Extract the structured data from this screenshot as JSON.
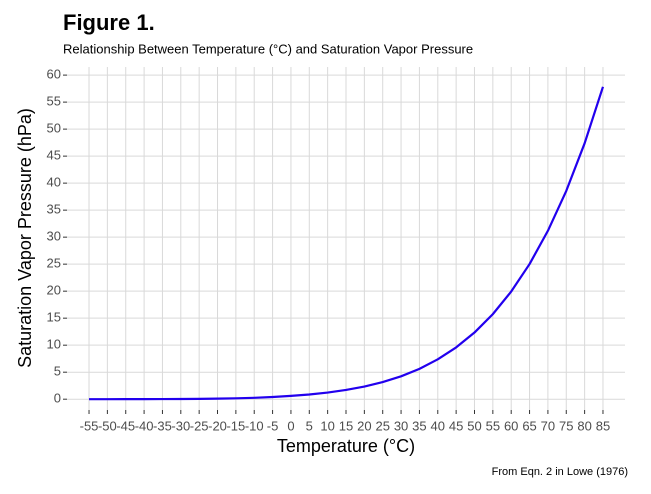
{
  "chart_data": {
    "type": "line",
    "title": "Figure 1.",
    "subtitle": "Relationship Between Temperature (°C) and Saturation Vapor Pressure",
    "x_label": "Temperature (°C)",
    "y_label": "Saturation Vapor Pressure (hPa)",
    "caption": "From Eqn. 2 in Lowe (1976)",
    "x": [
      -55,
      -50,
      -45,
      -40,
      -35,
      -30,
      -25,
      -20,
      -15,
      -10,
      -5,
      0,
      5,
      10,
      15,
      20,
      25,
      30,
      35,
      40,
      45,
      50,
      55,
      60,
      65,
      70,
      75,
      80,
      85
    ],
    "values": [
      0.002,
      0.004,
      0.007,
      0.013,
      0.022,
      0.038,
      0.063,
      0.103,
      0.165,
      0.26,
      0.4,
      0.61,
      0.87,
      1.23,
      1.71,
      2.34,
      3.17,
      4.24,
      5.62,
      7.38,
      9.59,
      12.34,
      15.75,
      19.93,
      25.02,
      31.18,
      38.56,
      47.37,
      57.83
    ],
    "color": "#2200ee",
    "xlim": [
      -61,
      91
    ],
    "ylim": [
      -2,
      61.5
    ],
    "xticks": [
      -55,
      -50,
      -45,
      -40,
      -35,
      -30,
      -25,
      -20,
      -15,
      -10,
      -5,
      0,
      5,
      10,
      15,
      20,
      25,
      30,
      35,
      40,
      45,
      50,
      55,
      60,
      65,
      70,
      75,
      80,
      85
    ],
    "yticks": [
      0,
      5,
      10,
      15,
      20,
      25,
      30,
      35,
      40,
      45,
      50,
      55,
      60
    ],
    "grid": true
  }
}
